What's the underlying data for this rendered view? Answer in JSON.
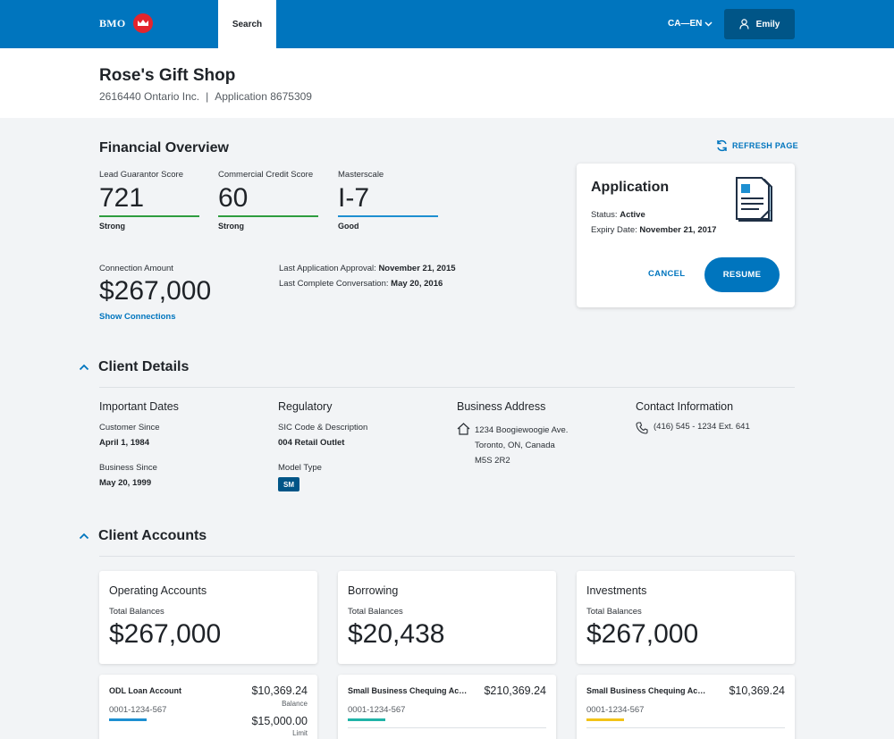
{
  "topbar": {
    "logo_text": "BMO",
    "search_tab": "Search",
    "language": "CA—EN",
    "user_name": "Emily"
  },
  "header": {
    "company": "Rose's Gift Shop",
    "legal_name": "2616440 Ontario Inc.",
    "application": "Application 8675309"
  },
  "financial_overview": {
    "title": "Financial Overview",
    "refresh_label": "REFRESH PAGE",
    "scores": [
      {
        "label": "Lead Guarantor Score",
        "value": "721",
        "rating": "Strong",
        "color": "#2e9d3f"
      },
      {
        "label": "Commercial Credit Score",
        "value": "60",
        "rating": "Strong",
        "color": "#2e9d3f"
      },
      {
        "label": "Masterscale",
        "value": "I-7",
        "rating": "Good",
        "color": "#1d8fd1"
      }
    ],
    "connection_label": "Connection Amount",
    "connection_amount": "$267,000",
    "show_connections": "Show Connections",
    "last_approval_label": "Last Application Approval:",
    "last_approval_value": "November 21, 2015",
    "last_conversation_label": "Last Complete Conversation:",
    "last_conversation_value": "May 20, 2016"
  },
  "application_card": {
    "title": "Application",
    "status_label": "Status:",
    "status_value": "Active",
    "expiry_label": "Expiry Date:",
    "expiry_value": "November 21, 2017",
    "cancel_label": "CANCEL",
    "resume_label": "RESUME"
  },
  "client_details": {
    "title": "Client Details",
    "important_dates": {
      "heading": "Important Dates",
      "customer_since_label": "Customer Since",
      "customer_since_value": "April 1, 1984",
      "business_since_label": "Business Since",
      "business_since_value": "May 20, 1999"
    },
    "regulatory": {
      "heading": "Regulatory",
      "sic_label": "SIC Code & Description",
      "sic_value": "004 Retail Outlet",
      "model_label": "Model Type",
      "model_value": "SM"
    },
    "address": {
      "heading": "Business Address",
      "line1": "1234 Boogiewoogie Ave.",
      "line2": "Toronto, ON, Canada",
      "line3": "M5S 2R2"
    },
    "contact": {
      "heading": "Contact Information",
      "phone": "(416) 545 - 1234 Ext. 641"
    }
  },
  "client_accounts": {
    "title": "Client Accounts",
    "summaries": [
      {
        "name": "Operating Accounts",
        "total_label": "Total Balances",
        "amount": "$267,000"
      },
      {
        "name": "Borrowing",
        "total_label": "Total Balances",
        "amount": "$20,438"
      },
      {
        "name": "Investments",
        "total_label": "Total Balances",
        "amount": "$267,000"
      }
    ],
    "accounts": [
      {
        "name": "ODL Loan Account",
        "amount": "$10,369.24",
        "number": "0001-1234-567",
        "bar_color": "#1d8fd1",
        "caption1": "Balance",
        "amount2": "$15,000.00",
        "caption2": "Limit"
      },
      {
        "name": "Small Business Chequing Account",
        "amount": "$210,369.24",
        "number": "0001-1234-567",
        "bar_color": "#20b3a8"
      },
      {
        "name": "Small Business Chequing Account",
        "amount": "$10,369.24",
        "number": "0001-1234-567",
        "bar_color": "#f2c318"
      }
    ]
  },
  "colors": {
    "brand_blue": "#0075be",
    "dark_blue": "#005587",
    "logo_red": "#e3252d"
  }
}
